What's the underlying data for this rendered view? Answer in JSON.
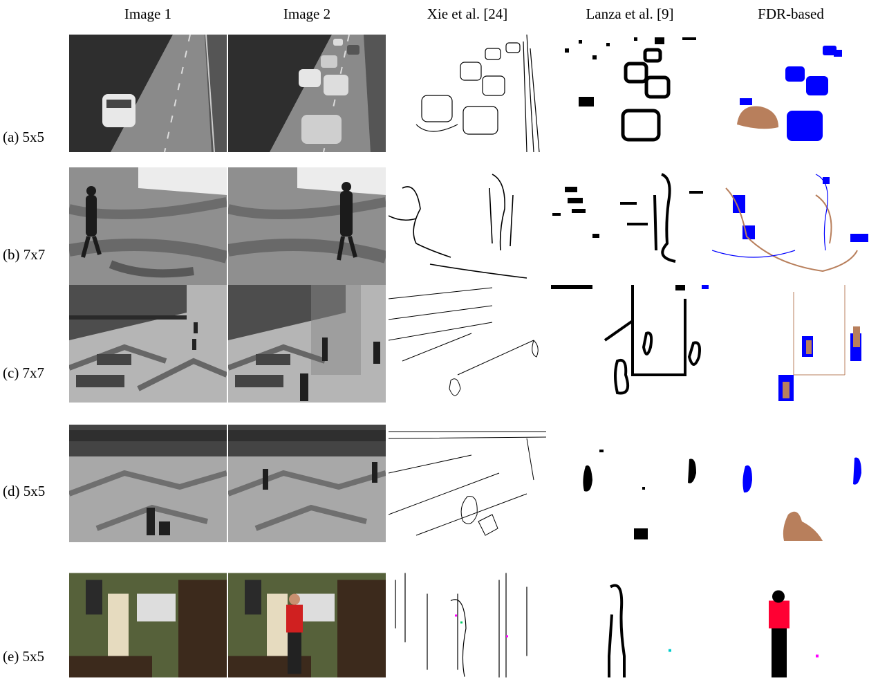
{
  "columns": [
    "Image 1",
    "Image 2",
    "Xie et al. [24]",
    "Lanza et al. [9]",
    "FDR-based"
  ],
  "rows": [
    {
      "label": "(a) 5x5",
      "scene": "highway"
    },
    {
      "label": "(b) 7x7",
      "scene": "pedestrian-shadows"
    },
    {
      "label": "(c) 7x7",
      "scene": "train-station"
    },
    {
      "label": "(d) 5x5",
      "scene": "station-floor"
    },
    {
      "label": "(e) 5x5",
      "scene": "office"
    }
  ],
  "colors": {
    "unchanged_color": "#0000ff",
    "changed_color": "#b87f5c",
    "edge_color": "#000000"
  }
}
